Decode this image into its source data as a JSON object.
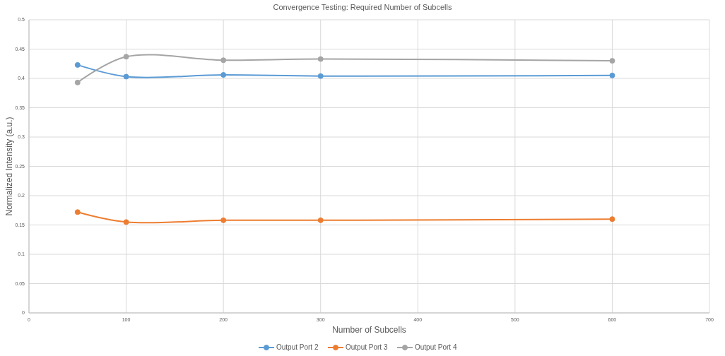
{
  "chart_data": {
    "type": "line",
    "title": "Convergence Testing: Required Number of Subcells",
    "xlabel": "Number of Subcells",
    "ylabel": "Normalized Intensity (a.u.)",
    "x": [
      50,
      100,
      200,
      300,
      600
    ],
    "series": [
      {
        "name": "Output Port 2",
        "color": "#5b9bd5",
        "values": [
          0.423,
          0.403,
          0.406,
          0.404,
          0.405
        ]
      },
      {
        "name": "Output Port 3",
        "color": "#ed7d31",
        "values": [
          0.172,
          0.155,
          0.158,
          0.158,
          0.16
        ]
      },
      {
        "name": "Output Port 4",
        "color": "#a5a5a5",
        "values": [
          0.393,
          0.437,
          0.431,
          0.433,
          0.43
        ]
      }
    ],
    "xlim": [
      0,
      700
    ],
    "xticks": [
      0,
      100,
      200,
      300,
      400,
      500,
      600,
      700
    ],
    "ylim": [
      0,
      0.5
    ],
    "yticks": [
      0,
      0.05,
      0.1,
      0.15,
      0.2,
      0.25,
      0.3,
      0.35,
      0.4,
      0.45,
      0.5
    ],
    "grid": true,
    "legend": "bottom",
    "marker": "circle",
    "line_style": "solid"
  }
}
